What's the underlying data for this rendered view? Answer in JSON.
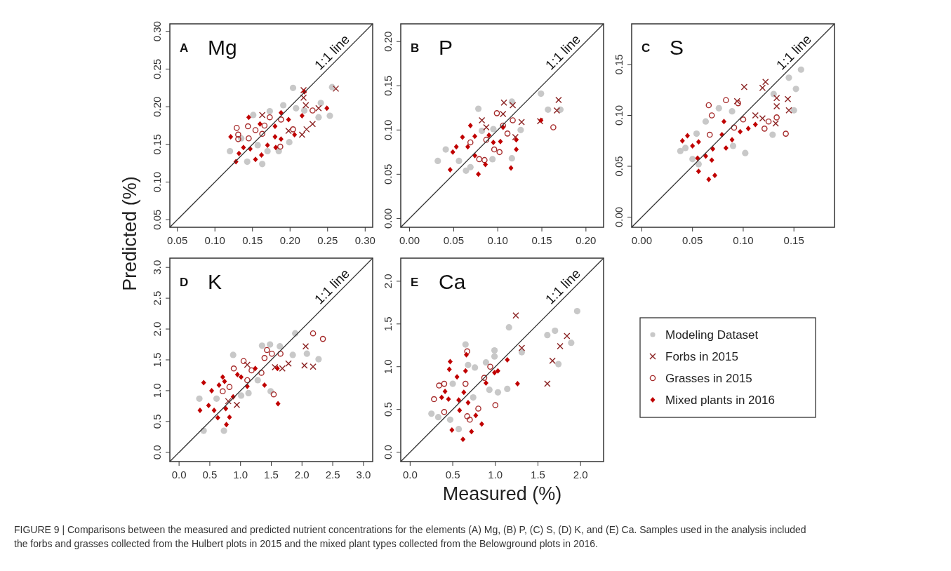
{
  "chart_data": [
    {
      "type": "scatter",
      "title": "Mg",
      "ylabel": "Predicted (%)",
      "annotations": [
        "A"
      ],
      "xlim": [
        0.04,
        0.31
      ],
      "ylim": [
        0.04,
        0.31
      ],
      "xticks": [
        {
          "value": 0.05,
          "label": "0.05"
        },
        {
          "value": 0.1,
          "label": "0.10"
        },
        {
          "value": 0.15,
          "label": "0.15"
        },
        {
          "value": 0.2,
          "label": "0.20"
        },
        {
          "value": 0.25,
          "label": "0.25"
        },
        {
          "value": 0.3,
          "label": "0.30"
        }
      ],
      "yticks": [
        {
          "value": 0.05,
          "label": "0.05"
        },
        {
          "value": 0.1,
          "label": "0.10"
        },
        {
          "value": 0.15,
          "label": "0.15"
        },
        {
          "value": 0.2,
          "label": "0.20"
        },
        {
          "value": 0.25,
          "label": "0.25"
        },
        {
          "value": 0.3,
          "label": "0.30"
        }
      ],
      "series": [
        {
          "color": "#c8c8c8",
          "marker": "circle",
          "x": [
            0.12,
            0.143,
            0.163,
            0.135,
            0.157,
            0.173,
            0.191,
            0.204,
            0.219,
            0.238,
            0.241,
            0.253,
            0.256,
            0.199,
            0.185,
            0.151,
            0.17,
            0.208
          ],
          "values": [
            0.141,
            0.127,
            0.124,
            0.158,
            0.149,
            0.194,
            0.202,
            0.225,
            0.195,
            0.186,
            0.205,
            0.188,
            0.226,
            0.153,
            0.141,
            0.189,
            0.141,
            0.198
          ]
        },
        {
          "color": "#8b2323",
          "marker": "cross",
          "x": [
            0.218,
            0.218,
            0.221,
            0.238,
            0.23,
            0.222,
            0.216,
            0.261,
            0.198,
            0.163
          ],
          "values": [
            0.222,
            0.212,
            0.202,
            0.198,
            0.177,
            0.17,
            0.163,
            0.224,
            0.168,
            0.189
          ]
        },
        {
          "color": "#a52a2a",
          "marker": "circle",
          "x": [
            0.129,
            0.131,
            0.144,
            0.145,
            0.154,
            0.163,
            0.166,
            0.173,
            0.188,
            0.204,
            0.23,
            0.187,
            0.131
          ],
          "values": [
            0.172,
            0.163,
            0.174,
            0.158,
            0.169,
            0.164,
            0.175,
            0.186,
            0.183,
            0.17,
            0.195,
            0.147,
            0.157
          ]
        },
        {
          "color": "#c00000",
          "marker": "diamond",
          "x": [
            0.128,
            0.132,
            0.138,
            0.147,
            0.154,
            0.162,
            0.17,
            0.18,
            0.181,
            0.188,
            0.198,
            0.206,
            0.216,
            0.219,
            0.249,
            0.145,
            0.16,
            0.121,
            0.18,
            0.188
          ],
          "values": [
            0.127,
            0.138,
            0.146,
            0.144,
            0.13,
            0.136,
            0.149,
            0.16,
            0.146,
            0.157,
            0.183,
            0.163,
            0.188,
            0.22,
            0.198,
            0.186,
            0.177,
            0.16,
            0.174,
            0.192
          ]
        },
        {
          "name": "1:1 line",
          "type": "line",
          "color": "#333333",
          "x": [
            0.04,
            0.31
          ],
          "values": [
            0.04,
            0.31
          ]
        }
      ]
    },
    {
      "type": "scatter",
      "title": "P",
      "annotations": [
        "B"
      ],
      "xlim": [
        -0.01,
        0.22
      ],
      "ylim": [
        -0.01,
        0.22
      ],
      "xticks": [
        {
          "value": 0,
          "label": "0.00"
        },
        {
          "value": 0.05,
          "label": "0.05"
        },
        {
          "value": 0.1,
          "label": "0.10"
        },
        {
          "value": 0.15,
          "label": "0.15"
        },
        {
          "value": 0.2,
          "label": "0.20"
        }
      ],
      "yticks": [
        {
          "value": 0,
          "label": "0.00"
        },
        {
          "value": 0.05,
          "label": "0.05"
        },
        {
          "value": 0.1,
          "label": "0.10"
        },
        {
          "value": 0.15,
          "label": "0.15"
        },
        {
          "value": 0.2,
          "label": "0.20"
        }
      ],
      "series": [
        {
          "color": "#c8c8c8",
          "marker": "circle",
          "x": [
            0.032,
            0.041,
            0.064,
            0.069,
            0.078,
            0.082,
            0.095,
            0.116,
            0.126,
            0.116,
            0.149,
            0.157,
            0.171,
            0.094,
            0.056
          ],
          "values": [
            0.065,
            0.078,
            0.054,
            0.058,
            0.124,
            0.099,
            0.101,
            0.132,
            0.1,
            0.068,
            0.141,
            0.123,
            0.123,
            0.067,
            0.065
          ]
        },
        {
          "color": "#8b2323",
          "marker": "cross",
          "x": [
            0.107,
            0.117,
            0.082,
            0.087,
            0.106,
            0.127,
            0.12,
            0.169,
            0.167,
            0.148
          ],
          "values": [
            0.131,
            0.128,
            0.111,
            0.103,
            0.118,
            0.109,
            0.092,
            0.134,
            0.122,
            0.11
          ]
        },
        {
          "color": "#a52a2a",
          "marker": "circle",
          "x": [
            0.099,
            0.117,
            0.111,
            0.069,
            0.087,
            0.096,
            0.102,
            0.079,
            0.085,
            0.163,
            0.106
          ],
          "values": [
            0.119,
            0.111,
            0.096,
            0.086,
            0.089,
            0.078,
            0.075,
            0.067,
            0.066,
            0.103,
            0.105
          ]
        },
        {
          "color": "#c00000",
          "marker": "diamond",
          "x": [
            0.06,
            0.046,
            0.049,
            0.069,
            0.074,
            0.066,
            0.078,
            0.086,
            0.09,
            0.095,
            0.103,
            0.106,
            0.115,
            0.121,
            0.121,
            0.149,
            0.053,
            0.074
          ],
          "values": [
            0.092,
            0.055,
            0.075,
            0.105,
            0.093,
            0.081,
            0.05,
            0.061,
            0.094,
            0.086,
            0.087,
            0.103,
            0.057,
            0.078,
            0.089,
            0.111,
            0.081,
            0.071
          ]
        },
        {
          "name": "1:1 line",
          "type": "line",
          "color": "#333333",
          "x": [
            -0.01,
            0.22
          ],
          "values": [
            -0.01,
            0.22
          ]
        }
      ]
    },
    {
      "type": "scatter",
      "title": "S",
      "annotations": [
        "C"
      ],
      "xlim": [
        -0.01,
        0.19
      ],
      "ylim": [
        -0.01,
        0.19
      ],
      "xticks": [
        {
          "value": 0,
          "label": "0.00"
        },
        {
          "value": 0.05,
          "label": "0.05"
        },
        {
          "value": 0.1,
          "label": "0.10"
        },
        {
          "value": 0.15,
          "label": "0.15"
        }
      ],
      "yticks": [
        {
          "value": 0,
          "label": "0.00"
        },
        {
          "value": 0.05,
          "label": "0.05"
        },
        {
          "value": 0.1,
          "label": "0.10"
        },
        {
          "value": 0.15,
          "label": "0.15"
        }
      ],
      "series": [
        {
          "color": "#c8c8c8",
          "marker": "circle",
          "x": [
            0.043,
            0.05,
            0.056,
            0.063,
            0.076,
            0.089,
            0.102,
            0.129,
            0.145,
            0.152,
            0.157,
            0.15,
            0.13,
            0.054,
            0.09,
            0.038
          ],
          "values": [
            0.068,
            0.057,
            0.052,
            0.094,
            0.107,
            0.104,
            0.063,
            0.081,
            0.137,
            0.126,
            0.145,
            0.105,
            0.121,
            0.082,
            0.07,
            0.065
          ]
        },
        {
          "color": "#8b2323",
          "marker": "cross",
          "x": [
            0.101,
            0.119,
            0.122,
            0.094,
            0.133,
            0.133,
            0.144,
            0.145,
            0.112,
            0.119,
            0.132
          ],
          "values": [
            0.128,
            0.127,
            0.133,
            0.114,
            0.117,
            0.109,
            0.116,
            0.105,
            0.1,
            0.097,
            0.092
          ]
        },
        {
          "color": "#a52a2a",
          "marker": "circle",
          "x": [
            0.066,
            0.069,
            0.083,
            0.095,
            0.1,
            0.091,
            0.067,
            0.121,
            0.125,
            0.133,
            0.142
          ],
          "values": [
            0.11,
            0.1,
            0.115,
            0.112,
            0.096,
            0.088,
            0.081,
            0.087,
            0.094,
            0.098,
            0.082
          ]
        },
        {
          "color": "#c00000",
          "marker": "diamond",
          "x": [
            0.045,
            0.05,
            0.056,
            0.055,
            0.063,
            0.069,
            0.056,
            0.066,
            0.072,
            0.079,
            0.081,
            0.089,
            0.097,
            0.105,
            0.112,
            0.083,
            0.07,
            0.04
          ],
          "values": [
            0.08,
            0.07,
            0.074,
            0.058,
            0.06,
            0.056,
            0.045,
            0.037,
            0.041,
            0.081,
            0.094,
            0.076,
            0.084,
            0.087,
            0.091,
            0.068,
            0.067,
            0.075
          ]
        },
        {
          "name": "1:1 line",
          "type": "line",
          "color": "#333333",
          "x": [
            -0.01,
            0.19
          ],
          "values": [
            -0.01,
            0.19
          ]
        }
      ]
    },
    {
      "type": "scatter",
      "title": "K",
      "annotations": [
        "D"
      ],
      "xlim": [
        -0.15,
        3.15
      ],
      "ylim": [
        -0.15,
        3.15
      ],
      "xticks": [
        {
          "value": 0,
          "label": "0.0"
        },
        {
          "value": 0.5,
          "label": "0.5"
        },
        {
          "value": 1,
          "label": "1.0"
        },
        {
          "value": 1.5,
          "label": "1.5"
        },
        {
          "value": 2,
          "label": "2.0"
        },
        {
          "value": 2.5,
          "label": "2.5"
        },
        {
          "value": 3,
          "label": "3.0"
        }
      ],
      "yticks": [
        {
          "value": 0,
          "label": "0.0"
        },
        {
          "value": 0.5,
          "label": "0.5"
        },
        {
          "value": 1,
          "label": "1.0"
        },
        {
          "value": 1.5,
          "label": "1.5"
        },
        {
          "value": 2,
          "label": "2.0"
        },
        {
          "value": 2.5,
          "label": "2.5"
        },
        {
          "value": 3,
          "label": "3.0"
        }
      ],
      "series": [
        {
          "color": "#c8c8c8",
          "marker": "circle",
          "x": [
            0.4,
            0.33,
            0.73,
            0.88,
            1.35,
            1.48,
            1.64,
            1.89,
            1.85,
            2.08,
            2.27,
            1.13,
            1.28,
            1.01,
            0.61,
            1.49
          ],
          "values": [
            0.35,
            0.87,
            0.35,
            1.58,
            1.73,
            1.75,
            1.72,
            1.93,
            1.58,
            1.6,
            1.51,
            0.96,
            1.17,
            0.92,
            0.87,
            0.99
          ]
        },
        {
          "color": "#8b2323",
          "marker": "cross",
          "x": [
            2.06,
            2.04,
            2.18,
            1.78,
            1.68,
            1.56,
            1.11,
            0.94,
            0.8
          ],
          "values": [
            1.72,
            1.41,
            1.39,
            1.44,
            1.36,
            1.38,
            1.42,
            0.77,
            0.83
          ]
        },
        {
          "color": "#a52a2a",
          "marker": "circle",
          "x": [
            2.18,
            2.34,
            1.43,
            1.51,
            1.65,
            1.39,
            1.05,
            0.89,
            1.18,
            1.34,
            1.11,
            0.82,
            0.71,
            1.54
          ],
          "values": [
            1.93,
            1.84,
            1.66,
            1.6,
            1.6,
            1.53,
            1.48,
            1.36,
            1.33,
            1.29,
            1.17,
            1.06,
            0.99,
            0.94
          ]
        },
        {
          "color": "#c00000",
          "marker": "diamond",
          "x": [
            0.4,
            0.34,
            0.48,
            0.53,
            0.65,
            0.71,
            0.74,
            0.57,
            0.63,
            0.77,
            0.82,
            0.76,
            0.95,
            1.01,
            1.11,
            1.24,
            1.39,
            1.6,
            1.61,
            0.88
          ],
          "values": [
            1.13,
            0.68,
            0.76,
            1.0,
            1.09,
            1.22,
            1.15,
            0.68,
            0.56,
            0.45,
            0.57,
            0.71,
            1.26,
            1.22,
            1.07,
            1.36,
            1.09,
            1.36,
            0.79,
            0.9
          ]
        },
        {
          "name": "1:1 line",
          "type": "line",
          "color": "#333333",
          "x": [
            -0.15,
            3.15
          ],
          "values": [
            -0.15,
            3.15
          ]
        }
      ]
    },
    {
      "type": "scatter",
      "title": "Ca",
      "xlabel": "Measured (%)",
      "legend": "right",
      "annotations": [
        "E",
        "FIGURE 9 | Comparisons between the measured and predicted nutrient concentrations for the elements (A) Mg, (B) P, (C) S, (D) K, and (E) Ca. Samples used in the analysis included the forbs and grasses collected from the Hulbert plots in 2015 and the mixed plant types collected from the Belowground plots in 2016."
      ],
      "xlim": [
        -0.11,
        2.27
      ],
      "ylim": [
        -0.11,
        2.27
      ],
      "xticks": [
        {
          "value": 0,
          "label": "0.0"
        },
        {
          "value": 0.5,
          "label": "0.5"
        },
        {
          "value": 1,
          "label": "1.0"
        },
        {
          "value": 1.5,
          "label": "1.5"
        },
        {
          "value": 2,
          "label": "2.0"
        }
      ],
      "yticks": [
        {
          "value": 0,
          "label": "0.0"
        },
        {
          "value": 0.5,
          "label": "0.5"
        },
        {
          "value": 1,
          "label": "1.0"
        },
        {
          "value": 1.5,
          "label": "1.5"
        },
        {
          "value": 2,
          "label": "2.0"
        }
      ],
      "series": [
        {
          "name": "Modeling Dataset",
          "color": "#c8c8c8",
          "marker": "circle",
          "x": [
            0.25,
            0.33,
            0.47,
            0.57,
            0.65,
            0.68,
            0.76,
            0.89,
            0.99,
            0.99,
            1.16,
            1.31,
            1.61,
            1.7,
            1.89,
            1.96,
            1.74,
            1.14,
            1.03,
            0.93,
            0.5,
            0.74
          ],
          "values": [
            0.45,
            0.41,
            0.38,
            0.27,
            1.26,
            1.02,
            0.99,
            1.05,
            1.19,
            1.12,
            1.46,
            1.17,
            1.37,
            1.42,
            1.28,
            1.65,
            1.03,
            0.74,
            0.7,
            0.73,
            0.8,
            0.64
          ]
        },
        {
          "name": "Forbs in 2015",
          "color": "#8b2323",
          "marker": "cross",
          "x": [
            1.24,
            1.84,
            1.76,
            1.31,
            1.67,
            1.61
          ],
          "values": [
            1.6,
            1.36,
            1.24,
            1.22,
            1.07,
            0.8
          ]
        },
        {
          "name": "Grasses in 2015",
          "color": "#a52a2a",
          "marker": "circle",
          "x": [
            0.67,
            0.94,
            0.87,
            0.65,
            0.34,
            0.4,
            0.28,
            0.4,
            0.67,
            0.7,
            0.8,
            1.0
          ],
          "values": [
            1.18,
            1.0,
            0.87,
            0.8,
            0.78,
            0.8,
            0.62,
            0.47,
            0.42,
            0.38,
            0.51,
            0.55
          ]
        },
        {
          "name": "Mixed plants in 2016",
          "color": "#c00000",
          "marker": "diamond",
          "x": [
            0.47,
            0.46,
            0.55,
            0.65,
            0.41,
            0.37,
            0.45,
            0.57,
            0.63,
            0.68,
            0.77,
            0.58,
            0.84,
            0.49,
            0.72,
            0.62,
            0.89,
            0.99,
            1.03,
            1.14,
            1.26,
            0.66
          ],
          "values": [
            1.06,
            0.97,
            0.88,
            0.95,
            0.71,
            0.64,
            0.62,
            0.61,
            0.7,
            0.58,
            0.43,
            0.49,
            0.33,
            0.26,
            0.24,
            0.15,
            0.81,
            0.93,
            0.95,
            1.08,
            0.8,
            1.14
          ]
        },
        {
          "name": "1:1 line",
          "type": "line",
          "color": "#333333",
          "x": [
            -0.11,
            2.27
          ],
          "values": [
            -0.11,
            2.27
          ]
        }
      ]
    }
  ]
}
